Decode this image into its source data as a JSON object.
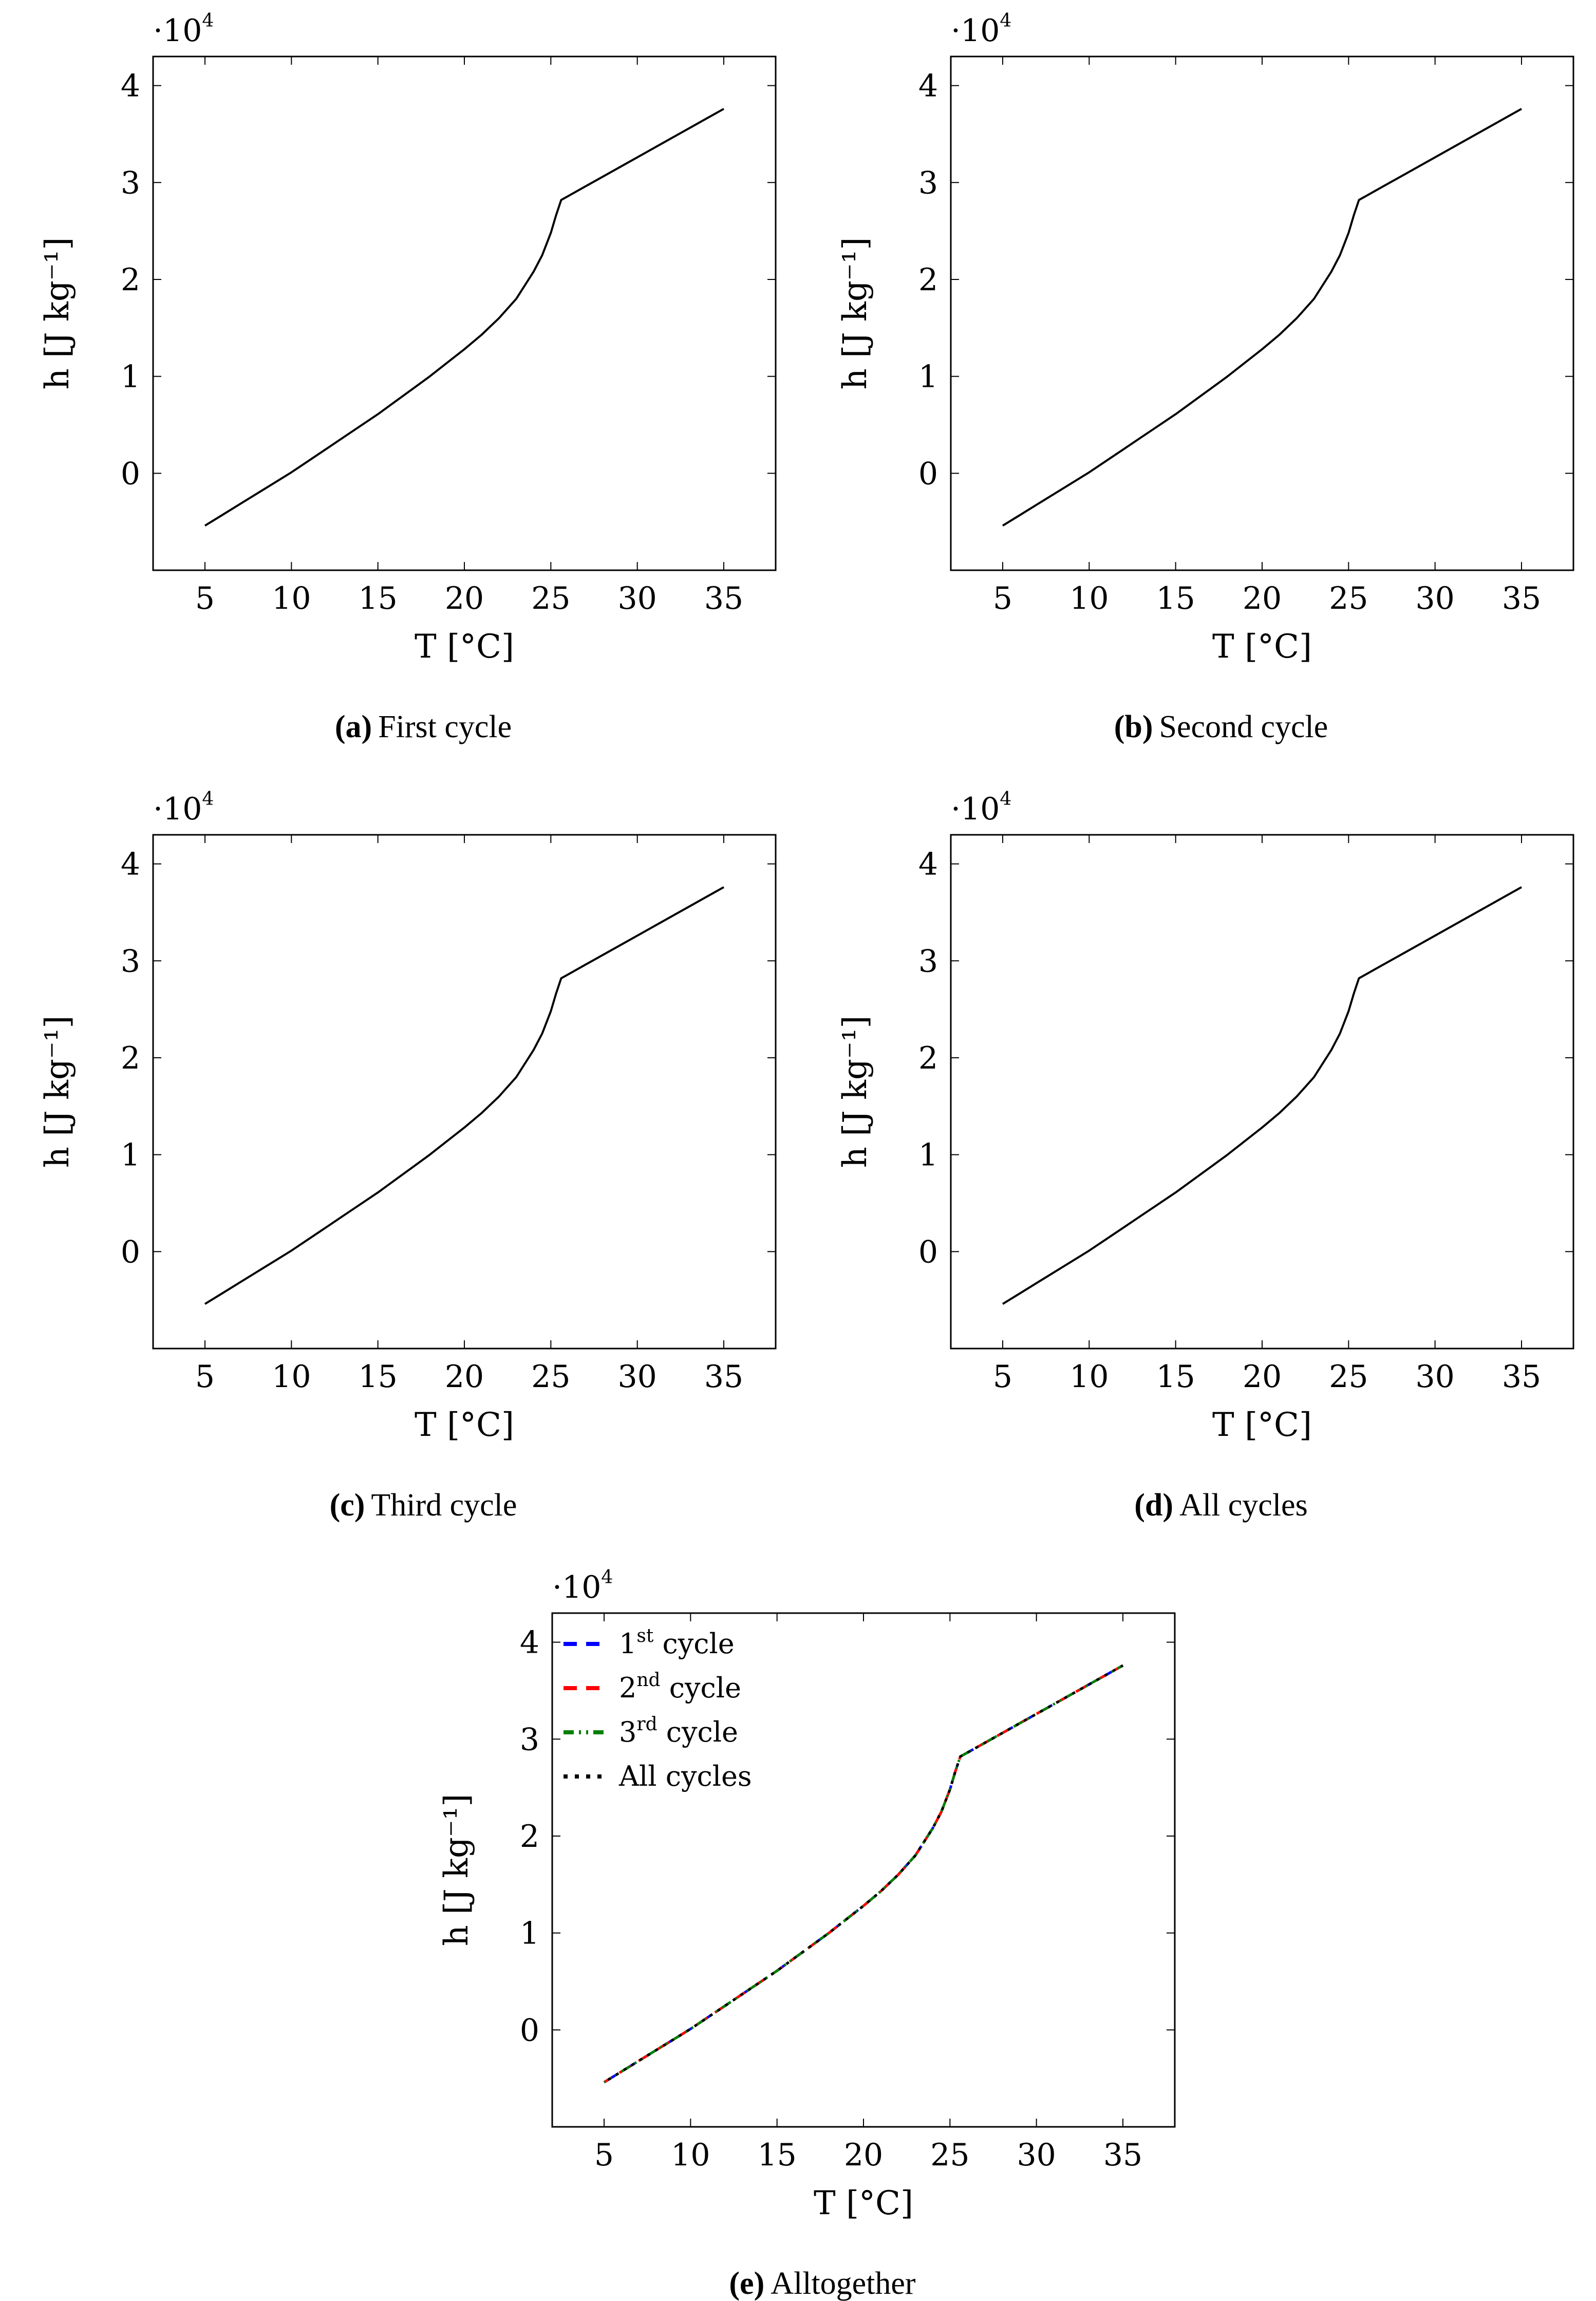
{
  "figure": {
    "curve_T": [
      5,
      6,
      7,
      8,
      9,
      10,
      11,
      12,
      13,
      14,
      15,
      16,
      17,
      18,
      19,
      20,
      21,
      22,
      23,
      24,
      24.5,
      25,
      25.3,
      25.6,
      26,
      27,
      28,
      29,
      30,
      31,
      32,
      33,
      34,
      35
    ],
    "curve_h": [
      -5400,
      -4300,
      -3200,
      -2100,
      -1000,
      100,
      1300,
      2500,
      3700,
      4900,
      6100,
      7400,
      8700,
      10000,
      11400,
      12800,
      14300,
      16000,
      18000,
      20800,
      22500,
      24800,
      26600,
      28200,
      28600,
      29600,
      30600,
      31600,
      32600,
      33600,
      34600,
      35600,
      36600,
      37600
    ]
  },
  "chart_data": [
    {
      "type": "line",
      "id": "a",
      "title": "",
      "xlabel": "T [°C]",
      "ylabel": "h [J kg⁻¹]",
      "y_multiplier": "·10",
      "y_multiplier_exp": "4",
      "xlim": [
        2,
        38
      ],
      "ylim": [
        -10000,
        43000
      ],
      "xticks": [
        5,
        10,
        15,
        20,
        25,
        30,
        35
      ],
      "xtick_labels": [
        "5",
        "10",
        "15",
        "20",
        "25",
        "30",
        "35"
      ],
      "yticks": [
        0,
        10000,
        20000,
        30000,
        40000
      ],
      "ytick_labels": [
        "0",
        "1",
        "2",
        "3",
        "4"
      ],
      "series": [
        {
          "name": "First cycle",
          "color": "#000000",
          "dash": "none"
        }
      ],
      "caption_letter": "(a)",
      "caption_text": "First cycle"
    },
    {
      "type": "line",
      "id": "b",
      "title": "",
      "xlabel": "T [°C]",
      "ylabel": "h [J kg⁻¹]",
      "y_multiplier": "·10",
      "y_multiplier_exp": "4",
      "xlim": [
        2,
        38
      ],
      "ylim": [
        -10000,
        43000
      ],
      "xticks": [
        5,
        10,
        15,
        20,
        25,
        30,
        35
      ],
      "xtick_labels": [
        "5",
        "10",
        "15",
        "20",
        "25",
        "30",
        "35"
      ],
      "yticks": [
        0,
        10000,
        20000,
        30000,
        40000
      ],
      "ytick_labels": [
        "0",
        "1",
        "2",
        "3",
        "4"
      ],
      "series": [
        {
          "name": "Second cycle",
          "color": "#000000",
          "dash": "none"
        }
      ],
      "caption_letter": "(b)",
      "caption_text": "Second cycle"
    },
    {
      "type": "line",
      "id": "c",
      "title": "",
      "xlabel": "T [°C]",
      "ylabel": "h [J kg⁻¹]",
      "y_multiplier": "·10",
      "y_multiplier_exp": "4",
      "xlim": [
        2,
        38
      ],
      "ylim": [
        -10000,
        43000
      ],
      "xticks": [
        5,
        10,
        15,
        20,
        25,
        30,
        35
      ],
      "xtick_labels": [
        "5",
        "10",
        "15",
        "20",
        "25",
        "30",
        "35"
      ],
      "yticks": [
        0,
        10000,
        20000,
        30000,
        40000
      ],
      "ytick_labels": [
        "0",
        "1",
        "2",
        "3",
        "4"
      ],
      "series": [
        {
          "name": "Third cycle",
          "color": "#000000",
          "dash": "none"
        }
      ],
      "caption_letter": "(c)",
      "caption_text": "Third cycle"
    },
    {
      "type": "line",
      "id": "d",
      "title": "",
      "xlabel": "T [°C]",
      "ylabel": "h [J kg⁻¹]",
      "y_multiplier": "·10",
      "y_multiplier_exp": "4",
      "xlim": [
        2,
        38
      ],
      "ylim": [
        -10000,
        43000
      ],
      "xticks": [
        5,
        10,
        15,
        20,
        25,
        30,
        35
      ],
      "xtick_labels": [
        "5",
        "10",
        "15",
        "20",
        "25",
        "30",
        "35"
      ],
      "yticks": [
        0,
        10000,
        20000,
        30000,
        40000
      ],
      "ytick_labels": [
        "0",
        "1",
        "2",
        "3",
        "4"
      ],
      "series": [
        {
          "name": "All cycles",
          "color": "#000000",
          "dash": "none"
        }
      ],
      "caption_letter": "(d)",
      "caption_text": "All cycles"
    },
    {
      "type": "line",
      "id": "e",
      "title": "",
      "xlabel": "T [°C]",
      "ylabel": "h [J kg⁻¹]",
      "y_multiplier": "·10",
      "y_multiplier_exp": "4",
      "xlim": [
        2,
        38
      ],
      "ylim": [
        -10000,
        43000
      ],
      "xticks": [
        5,
        10,
        15,
        20,
        25,
        30,
        35
      ],
      "xtick_labels": [
        "5",
        "10",
        "15",
        "20",
        "25",
        "30",
        "35"
      ],
      "yticks": [
        0,
        10000,
        20000,
        30000,
        40000
      ],
      "ytick_labels": [
        "0",
        "1",
        "2",
        "3",
        "4"
      ],
      "legend_position": "top-left",
      "series": [
        {
          "name": "1",
          "sup": "st",
          "suffix": " cycle",
          "color": "#0000ff",
          "dash": "dashed"
        },
        {
          "name": "2",
          "sup": "nd",
          "suffix": " cycle",
          "color": "#ff0000",
          "dash": "dashed"
        },
        {
          "name": "3",
          "sup": "rd",
          "suffix": " cycle",
          "color": "#008000",
          "dash": "dashdotdot"
        },
        {
          "name": "All cycles",
          "sup": "",
          "suffix": "",
          "color": "#000000",
          "dash": "dotted"
        }
      ],
      "caption_letter": "(e)",
      "caption_text": "Alltogether"
    }
  ]
}
